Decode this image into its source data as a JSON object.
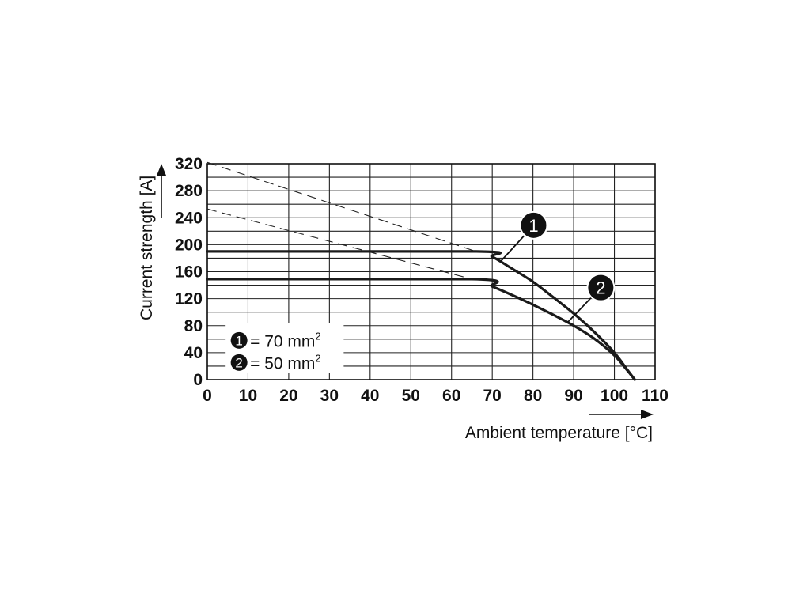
{
  "chart_data": {
    "type": "line",
    "xlabel": "Ambient temperature [°C]",
    "ylabel": "Current strength [A]",
    "xlim": [
      0,
      110
    ],
    "ylim": [
      0,
      320
    ],
    "x_ticks": [
      "0",
      "10",
      "20",
      "30",
      "40",
      "50",
      "60",
      "70",
      "80",
      "90",
      "100",
      "110"
    ],
    "y_ticks": [
      "0",
      "40",
      "80",
      "120",
      "160",
      "200",
      "240",
      "280",
      "320"
    ],
    "x_minor_step": 10,
    "y_minor_step": 20,
    "grid": true,
    "legend_position": "bottom-left",
    "series": [
      {
        "name": "70 mm",
        "marker": "1",
        "color": "#1a1a1a",
        "x": [
          0,
          66,
          70,
          75,
          80,
          85,
          90,
          95,
          100,
          103,
          105
        ],
        "y": [
          190,
          190,
          182,
          164,
          145,
          122,
          98,
          71,
          40,
          16,
          0
        ],
        "reference_x": [
          0,
          66
        ],
        "reference_y": [
          322,
          190
        ]
      },
      {
        "name": "50 mm",
        "marker": "2",
        "color": "#1a1a1a",
        "x": [
          0,
          65,
          70,
          75,
          80,
          85,
          90,
          95,
          100,
          103,
          105
        ],
        "y": [
          149,
          149,
          138,
          125,
          111,
          96,
          80,
          61,
          36,
          15,
          0
        ],
        "reference_x": [
          0,
          65
        ],
        "reference_y": [
          253,
          149
        ]
      }
    ],
    "legend": [
      {
        "marker": "1",
        "text": "= 70 mm",
        "sup": "2"
      },
      {
        "marker": "2",
        "text": "= 50 mm",
        "sup": "2"
      }
    ],
    "callouts": [
      {
        "marker": "1",
        "series": 0,
        "at_x": 72
      },
      {
        "marker": "2",
        "series": 1,
        "at_x": 88.5
      }
    ]
  }
}
